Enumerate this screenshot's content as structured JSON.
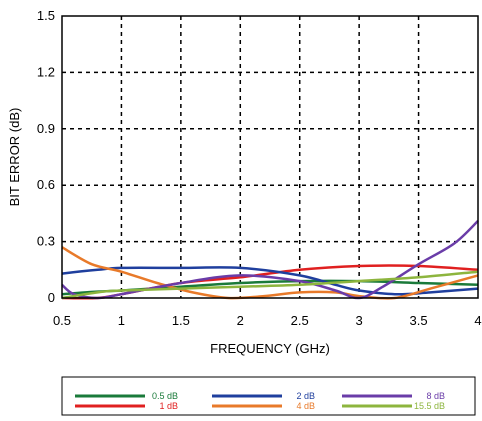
{
  "chart_data": {
    "type": "line",
    "xlabel": "FREQUENCY (GHz)",
    "ylabel": "BIT ERROR (dB)",
    "xlim": [
      0.5,
      4
    ],
    "ylim": [
      0,
      1.5
    ],
    "x_ticks": [
      0.5,
      1,
      1.5,
      2,
      2.5,
      3,
      3.5,
      4
    ],
    "x_tick_labels": [
      "0.5",
      "1",
      "1.5",
      "2",
      "2.5",
      "3",
      "3.5",
      "4"
    ],
    "y_ticks": [
      0,
      0.3,
      0.6,
      0.9,
      1.2,
      1.5
    ],
    "y_tick_labels": [
      "0",
      "0.3",
      "0.6",
      "0.9",
      "1.2",
      "1.5"
    ],
    "grid": true,
    "legend_position": "bottom",
    "series": [
      {
        "name": "0.5 dB",
        "color": "#1a7a3a",
        "x": [
          0.5,
          0.7,
          1.0,
          1.5,
          2.0,
          2.5,
          3.0,
          3.5,
          4.0
        ],
        "y": [
          0.02,
          0.03,
          0.04,
          0.06,
          0.08,
          0.09,
          0.09,
          0.08,
          0.07
        ]
      },
      {
        "name": "1 dB",
        "color": "#e02020",
        "x": [
          0.5,
          0.8,
          1.0,
          1.5,
          2.0,
          2.5,
          3.0,
          3.5,
          4.0
        ],
        "y": [
          0.0,
          0.0,
          0.02,
          0.08,
          0.11,
          0.15,
          0.17,
          0.17,
          0.15
        ]
      },
      {
        "name": "2 dB",
        "color": "#1f3f9e",
        "x": [
          0.5,
          0.8,
          1.0,
          1.5,
          2.0,
          2.5,
          2.8,
          3.0,
          3.3,
          3.6,
          4.0
        ],
        "y": [
          0.13,
          0.15,
          0.16,
          0.16,
          0.16,
          0.12,
          0.07,
          0.04,
          0.02,
          0.03,
          0.05
        ]
      },
      {
        "name": "4 dB",
        "color": "#e87a2a",
        "x": [
          0.5,
          0.75,
          1.0,
          1.3,
          1.6,
          1.9,
          2.2,
          2.5,
          2.8,
          3.0,
          3.3,
          3.6,
          4.0
        ],
        "y": [
          0.27,
          0.18,
          0.14,
          0.08,
          0.03,
          0.0,
          0.01,
          0.03,
          0.03,
          0.01,
          0.0,
          0.05,
          0.12
        ]
      },
      {
        "name": "8 dB",
        "color": "#6a3ca8",
        "x": [
          0.5,
          0.6,
          0.8,
          1.0,
          1.5,
          2.0,
          2.5,
          2.8,
          3.0,
          3.2,
          3.5,
          3.8,
          4.0
        ],
        "y": [
          0.07,
          0.02,
          0.0,
          0.02,
          0.08,
          0.12,
          0.09,
          0.04,
          0.0,
          0.06,
          0.18,
          0.29,
          0.41
        ]
      },
      {
        "name": "15.5 dB",
        "color": "#8db53e",
        "x": [
          0.5,
          0.8,
          1.0,
          1.5,
          2.0,
          2.5,
          3.0,
          3.5,
          4.0
        ],
        "y": [
          0.0,
          0.03,
          0.04,
          0.05,
          0.06,
          0.07,
          0.09,
          0.11,
          0.14
        ]
      }
    ]
  }
}
